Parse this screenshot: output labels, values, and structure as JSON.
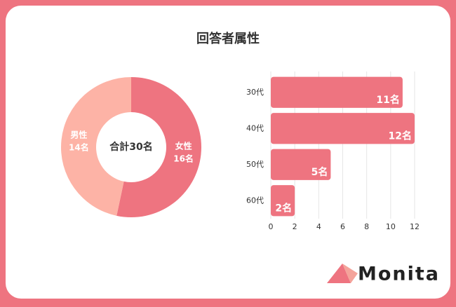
{
  "title": "回答者属性",
  "brand": "Monita",
  "chart_data": [
    {
      "type": "donut",
      "center_label": "合計30名",
      "categories": [
        "女性",
        "男性"
      ],
      "values": [
        16,
        14
      ],
      "value_labels": [
        "16名",
        "14名"
      ],
      "colors": [
        "#ee7480",
        "#fdb3a6"
      ]
    },
    {
      "type": "bar",
      "orientation": "horizontal",
      "categories": [
        "30代",
        "40代",
        "50代",
        "60代"
      ],
      "values": [
        11,
        12,
        5,
        2
      ],
      "value_labels": [
        "11名",
        "12名",
        "5名",
        "2名"
      ],
      "color": "#ee7480",
      "xlim": [
        0,
        12
      ],
      "xticks": [
        0,
        2,
        4,
        6,
        8,
        10,
        12
      ],
      "grid": true
    }
  ]
}
